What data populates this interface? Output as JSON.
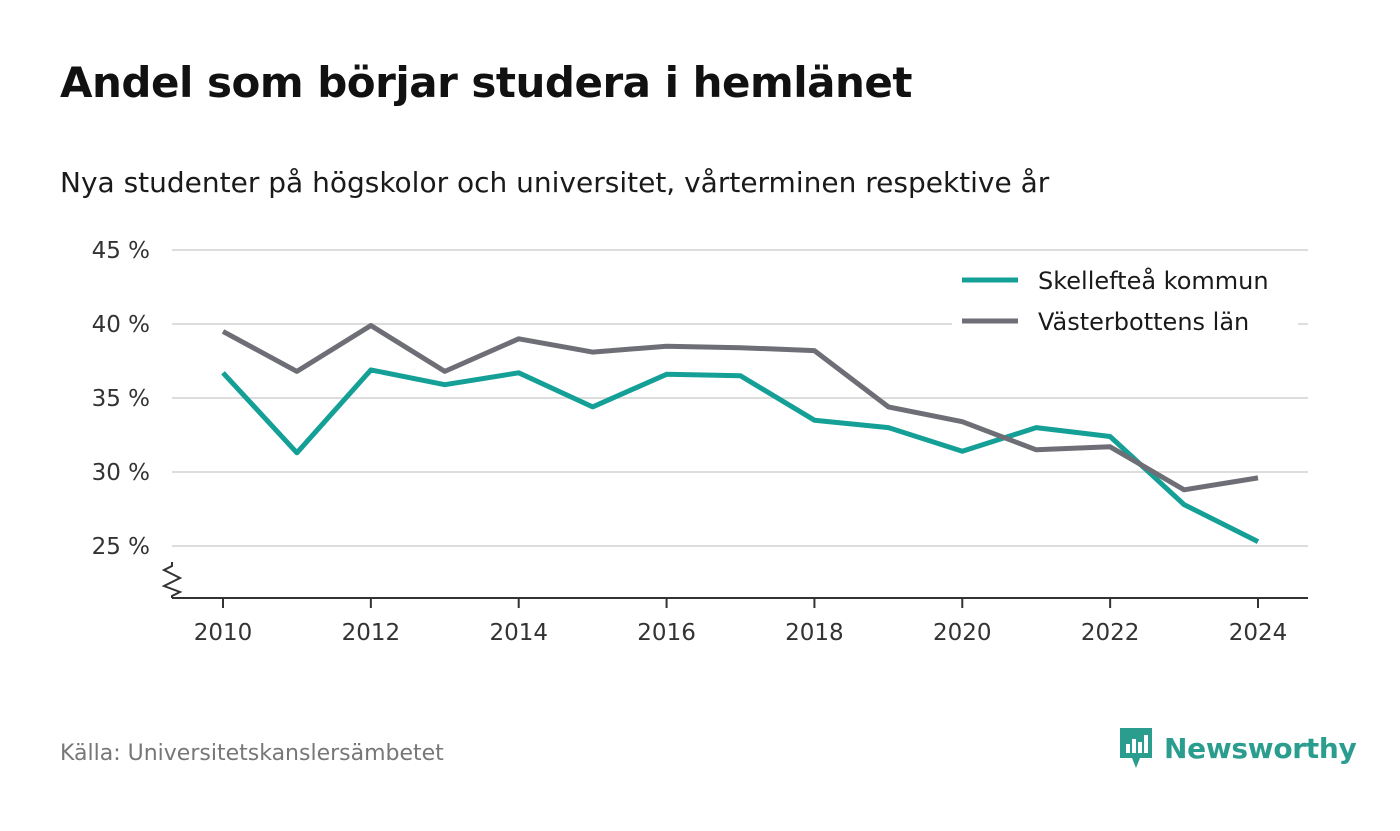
{
  "title": "Andel som börjar studera i hemlänet",
  "subtitle": "Nya studenter på högskolor och universitet, vårterminen respektive år",
  "source": "Källa: Universitetskanslersämbetet",
  "brand": "Newsworthy",
  "colors": {
    "skelleftea": "#14a096",
    "vasterbotten": "#6e6e76",
    "grid": "#dddddd",
    "axis": "#333333",
    "brand": "#2a9d8f"
  },
  "chart_data": {
    "type": "line",
    "x": [
      2010,
      2011,
      2012,
      2013,
      2014,
      2015,
      2016,
      2017,
      2018,
      2019,
      2020,
      2021,
      2022,
      2023,
      2024
    ],
    "x_ticks": [
      2010,
      2012,
      2014,
      2016,
      2018,
      2020,
      2022,
      2024
    ],
    "x_tick_labels": [
      "2010",
      "2012",
      "2014",
      "2016",
      "2018",
      "2020",
      "2022",
      "2024"
    ],
    "y_ticks": [
      25,
      30,
      35,
      40,
      45
    ],
    "y_tick_labels": [
      "25 %",
      "30 %",
      "35 %",
      "40 %",
      "45 %"
    ],
    "ylim": [
      21.5,
      45
    ],
    "xlim": [
      2009.3,
      2024.7
    ],
    "y_axis_break": true,
    "grid": true,
    "legend_position": "top-right",
    "series": [
      {
        "name": "Skellefteå kommun",
        "color_key": "skelleftea",
        "values": [
          36.7,
          31.3,
          36.9,
          35.9,
          36.7,
          34.4,
          36.6,
          36.5,
          33.5,
          33.0,
          31.4,
          33.0,
          32.4,
          27.8,
          25.3
        ]
      },
      {
        "name": "Västerbottens län",
        "color_key": "vasterbotten",
        "values": [
          39.5,
          36.8,
          39.9,
          36.8,
          39.0,
          38.1,
          38.5,
          38.4,
          38.2,
          34.4,
          33.4,
          31.5,
          31.7,
          28.8,
          29.6
        ]
      }
    ]
  }
}
